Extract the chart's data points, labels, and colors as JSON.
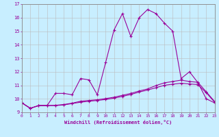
{
  "xlabel": "Windchill (Refroidissement éolien,°C)",
  "bg_color": "#c8eeff",
  "line_color": "#990099",
  "grid_color": "#bbbbbb",
  "spine_color": "#888888",
  "xmin": 0,
  "xmax": 23,
  "ymin": 9,
  "ymax": 17,
  "series1_x": [
    0,
    1,
    2,
    3,
    4,
    5,
    6,
    7,
    8,
    9,
    10,
    11,
    12,
    13,
    14,
    15,
    16,
    17,
    18,
    19,
    20,
    21,
    22,
    23
  ],
  "series1_y": [
    9.7,
    9.3,
    9.5,
    9.5,
    10.4,
    10.4,
    10.3,
    11.5,
    11.4,
    10.3,
    12.7,
    15.1,
    16.3,
    14.6,
    16.0,
    16.6,
    16.3,
    15.6,
    15.0,
    11.5,
    12.0,
    11.2,
    10.0,
    9.7
  ],
  "series2_x": [
    0,
    1,
    2,
    3,
    4,
    5,
    6,
    7,
    8,
    9,
    10,
    11,
    12,
    13,
    14,
    15,
    16,
    17,
    18,
    19,
    20,
    21,
    22,
    23
  ],
  "series2_y": [
    9.7,
    9.3,
    9.5,
    9.5,
    9.5,
    9.55,
    9.65,
    9.75,
    9.82,
    9.88,
    9.95,
    10.05,
    10.18,
    10.32,
    10.5,
    10.65,
    10.82,
    11.0,
    11.08,
    11.15,
    11.1,
    11.05,
    10.45,
    9.75
  ],
  "series3_x": [
    0,
    1,
    2,
    3,
    4,
    5,
    6,
    7,
    8,
    9,
    10,
    11,
    12,
    13,
    14,
    15,
    16,
    17,
    18,
    19,
    20,
    21,
    22,
    23
  ],
  "series3_y": [
    9.7,
    9.3,
    9.5,
    9.5,
    9.52,
    9.58,
    9.68,
    9.82,
    9.88,
    9.93,
    10.02,
    10.12,
    10.26,
    10.4,
    10.58,
    10.73,
    10.98,
    11.18,
    11.28,
    11.38,
    11.28,
    11.22,
    10.52,
    9.8
  ]
}
